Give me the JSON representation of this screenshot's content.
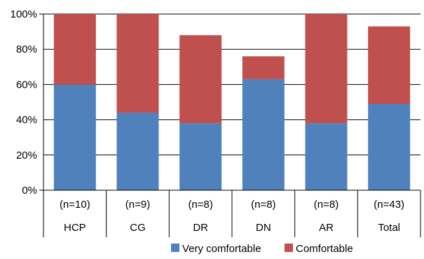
{
  "chart_data": {
    "type": "bar",
    "stacked": true,
    "categories": [
      "HCP",
      "CG",
      "DR",
      "DN",
      "AR",
      "Total"
    ],
    "category_counts": [
      "(n=10)",
      "(n=9)",
      "(n=8)",
      "(n=8)",
      "(n=8)",
      "(n=43)"
    ],
    "series": [
      {
        "name": "Very comfortable",
        "values": [
          60,
          44,
          38,
          63,
          38,
          49
        ],
        "color": "#4f81bd"
      },
      {
        "name": "Comfortable",
        "values": [
          40,
          56,
          50,
          13,
          62,
          44
        ],
        "color": "#c0504d"
      }
    ],
    "ylim": [
      0,
      100
    ],
    "y_ticks": [
      "0%",
      "20%",
      "40%",
      "60%",
      "80%",
      "100%"
    ],
    "y_tick_values": [
      0,
      20,
      40,
      60,
      80,
      100
    ],
    "grid": true,
    "legend_position": "bottom"
  }
}
